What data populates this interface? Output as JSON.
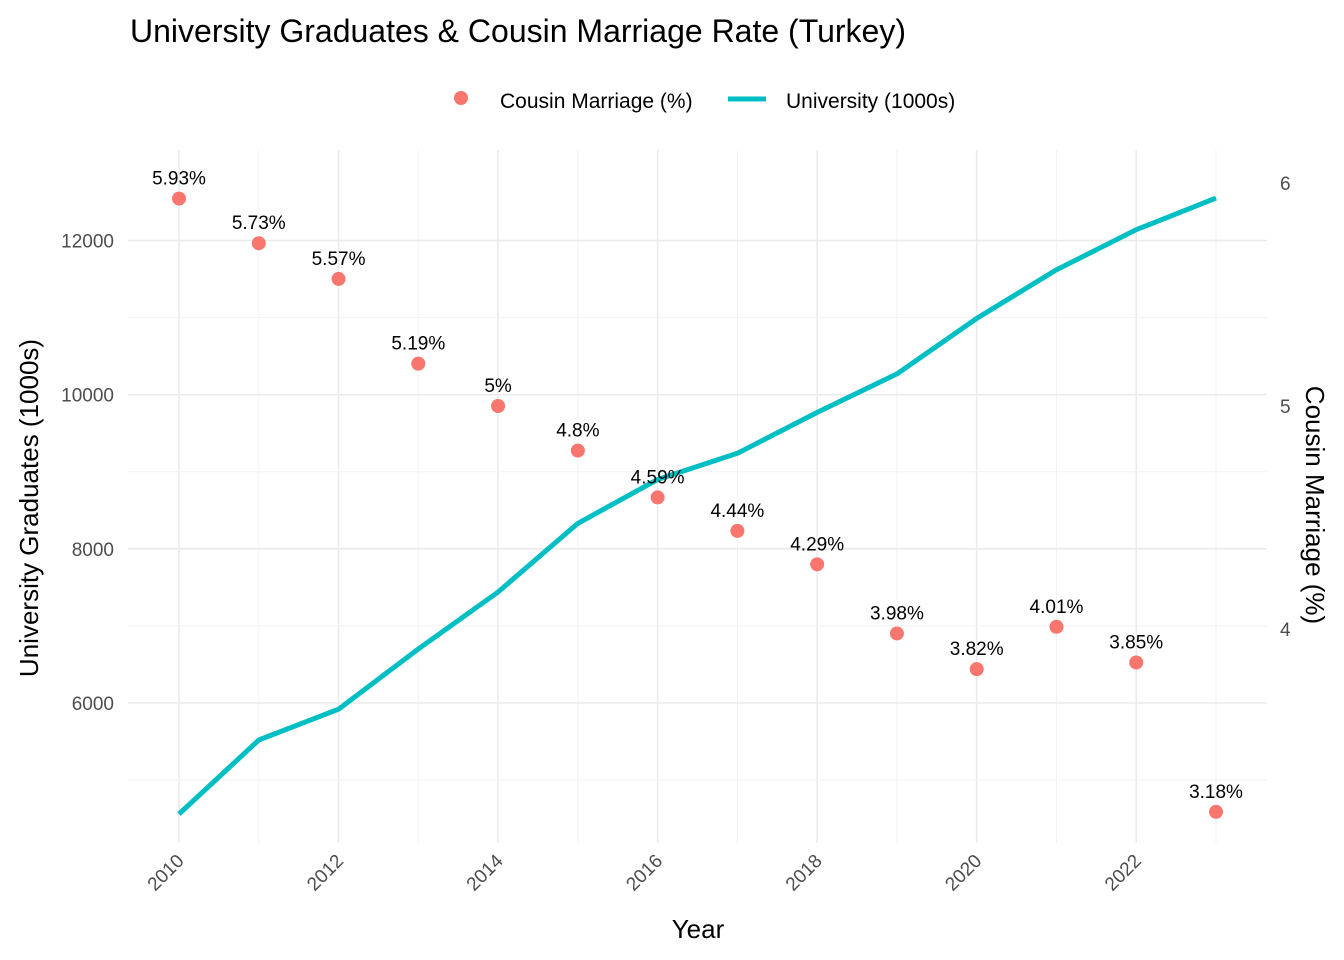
{
  "chart_data": {
    "type": "line",
    "title": "University Graduates & Cousin Marriage Rate (Turkey)",
    "xlabel": "Year",
    "ylabel_left": "University Graduates (1000s)",
    "ylabel_right": "Cousin Marriage (%)",
    "x": [
      2010,
      2011,
      2012,
      2013,
      2014,
      2015,
      2016,
      2017,
      2018,
      2019,
      2020,
      2021,
      2022,
      2023
    ],
    "x_ticks": [
      "2010",
      "2012",
      "2014",
      "2016",
      "2018",
      "2020",
      "2022"
    ],
    "y_left_ticks": [
      "6000",
      "8000",
      "10000",
      "12000"
    ],
    "y_right_ticks": [
      "4",
      "5",
      "6"
    ],
    "legend": {
      "position": "top",
      "items": [
        {
          "label": "Cousin Marriage (%)",
          "shape": "point",
          "color": "#F8766D"
        },
        {
          "label": "University (1000s)",
          "shape": "line",
          "color": "#00BFC4"
        }
      ]
    },
    "series": [
      {
        "name": "University (1000s)",
        "type": "line",
        "axis": "left",
        "color": "#00BFC4",
        "values": [
          4560,
          5520,
          5920,
          6700,
          7440,
          8330,
          8900,
          9240,
          9770,
          10270,
          10990,
          11620,
          12140,
          12550
        ]
      },
      {
        "name": "Cousin Marriage (%)",
        "type": "scatter",
        "axis": "right",
        "color": "#F8766D",
        "values": [
          5.93,
          5.73,
          5.57,
          5.19,
          5.0,
          4.8,
          4.59,
          4.44,
          4.29,
          3.98,
          3.82,
          4.01,
          3.85,
          3.18
        ],
        "labels": [
          "5.93%",
          "5.73%",
          "5.57%",
          "5.19%",
          "5%",
          "4.8%",
          "4.59%",
          "4.44%",
          "4.29%",
          "3.98%",
          "3.82%",
          "4.01%",
          "3.85%",
          "3.18%"
        ]
      }
    ],
    "grid": true
  }
}
